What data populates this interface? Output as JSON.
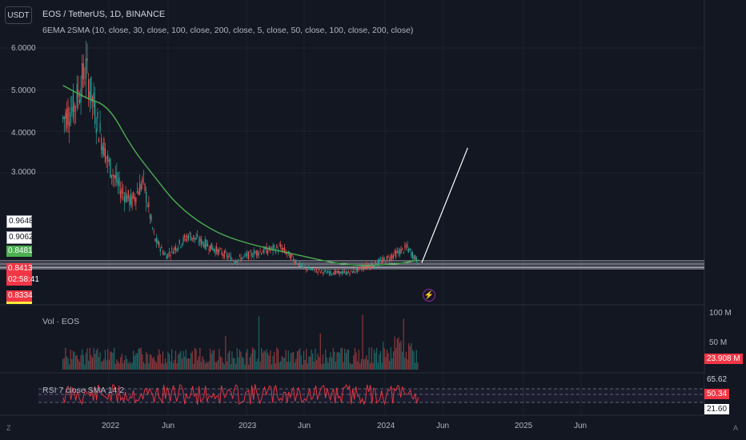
{
  "toolbar": {
    "currency_label": "USDT"
  },
  "header": {
    "title": "EOS / TetherUS, 1D, BINANCE",
    "indicator": "6EMA 2SMA (10, close, 30, close, 100, close, 200, close, 5, close, 50, close, 100, close, 200, close)"
  },
  "price_axis": {
    "ticks": [
      "6.0000",
      "5.0000",
      "4.0000",
      "3.0000"
    ],
    "badges": [
      {
        "label": "0.9648",
        "style": "white"
      },
      {
        "label": "0.9062",
        "style": "white"
      },
      {
        "label": "0.8481",
        "style": "green"
      },
      {
        "label": "0.8413",
        "style": "red"
      },
      {
        "label": "02:58:41",
        "style": "red"
      },
      {
        "label": "0.8334",
        "style": "red"
      }
    ]
  },
  "volume_pane": {
    "label": "Vol · EOS",
    "ticks": [
      "100 M",
      "50 M"
    ],
    "current": "23.908 M",
    "current_color": "#f23645"
  },
  "rsi_pane": {
    "label": "RSI 7 close SMA 14 2",
    "levels": [
      "65.62",
      "50.34",
      "21.60"
    ]
  },
  "time_axis": {
    "ticks": [
      "2022",
      "Jun",
      "2023",
      "Jun",
      "2024",
      "Jun",
      "2025",
      "Jun"
    ]
  },
  "corners": {
    "left": "Z",
    "right": "A"
  },
  "colors": {
    "background": "#131722",
    "up": "#26a69a",
    "down": "#ef5350",
    "sma": "#4caf50",
    "rsi": "#f23645",
    "trendline": "#ffffff"
  },
  "chart_data": {
    "type": "candlestick",
    "symbol": "EOS / TetherUS",
    "interval": "1D",
    "exchange": "BINANCE",
    "y_ticks": [
      6.0,
      5.0,
      4.0,
      3.0
    ],
    "x_ticks": [
      "2022",
      "Jun",
      "2023",
      "Jun",
      "2024",
      "Jun",
      "2025",
      "Jun"
    ],
    "price_path": [
      {
        "date": "2021-09",
        "price": 4.3
      },
      {
        "date": "2021-10",
        "price": 4.6
      },
      {
        "date": "2021-11",
        "price": 5.5
      },
      {
        "date": "2021-12",
        "price": 4.2
      },
      {
        "date": "2022-01",
        "price": 3.2
      },
      {
        "date": "2022-02",
        "price": 2.6
      },
      {
        "date": "2022-03",
        "price": 2.3
      },
      {
        "date": "2022-04",
        "price": 2.8
      },
      {
        "date": "2022-05",
        "price": 1.4
      },
      {
        "date": "2022-06",
        "price": 1.0
      },
      {
        "date": "2022-08",
        "price": 1.5
      },
      {
        "date": "2022-10",
        "price": 1.2
      },
      {
        "date": "2022-12",
        "price": 0.9
      },
      {
        "date": "2023-02",
        "price": 1.1
      },
      {
        "date": "2023-04",
        "price": 1.2
      },
      {
        "date": "2023-06",
        "price": 0.7
      },
      {
        "date": "2023-08",
        "price": 0.6
      },
      {
        "date": "2023-10",
        "price": 0.6
      },
      {
        "date": "2024-01",
        "price": 0.9
      },
      {
        "date": "2024-03",
        "price": 1.2
      },
      {
        "date": "2024-04",
        "price": 0.84
      }
    ],
    "sma_path": [
      {
        "date": "2021-09",
        "price": 5.1
      },
      {
        "date": "2021-11",
        "price": 4.8
      },
      {
        "date": "2022-01",
        "price": 4.6
      },
      {
        "date": "2022-03",
        "price": 3.6
      },
      {
        "date": "2022-05",
        "price": 2.9
      },
      {
        "date": "2022-07",
        "price": 2.2
      },
      {
        "date": "2022-10",
        "price": 1.6
      },
      {
        "date": "2023-01",
        "price": 1.3
      },
      {
        "date": "2023-05",
        "price": 1.05
      },
      {
        "date": "2023-10",
        "price": 0.75
      },
      {
        "date": "2024-02",
        "price": 0.8
      },
      {
        "date": "2024-04",
        "price": 0.9
      }
    ],
    "horizontal_levels": [
      0.9648,
      0.9062,
      0.8481,
      0.8413,
      0.8334
    ],
    "trendline": [
      {
        "date": "2024-04",
        "price": 0.84
      },
      {
        "date": "2024-08",
        "price": 3.6
      }
    ],
    "last_price": 0.8413,
    "volume_last": "23.908 M",
    "rsi_levels": [
      65.62,
      50.34,
      21.6
    ]
  }
}
